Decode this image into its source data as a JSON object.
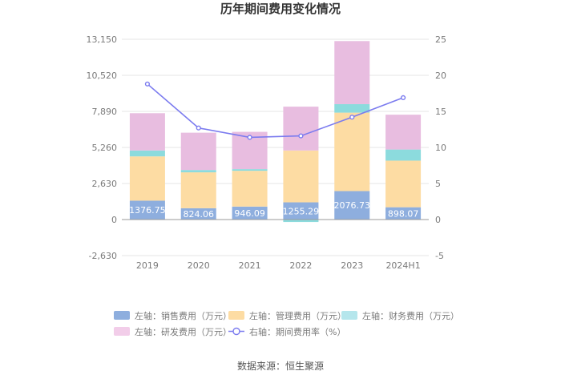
{
  "chart_data": {
    "type": "bar",
    "title": "历年期间费用变化情况",
    "source": "数据来源：恒生聚源",
    "categories": [
      "2019",
      "2020",
      "2021",
      "2022",
      "2023",
      "2024H1"
    ],
    "left_axis": {
      "ticks": [
        "13,150",
        "10,520",
        "7,890",
        "5,260",
        "2,630",
        "0",
        "-2,630"
      ],
      "tick_values": [
        13150,
        10520,
        7890,
        5260,
        2630,
        0,
        -2630
      ],
      "ylim": [
        -2630,
        13150
      ]
    },
    "right_axis": {
      "ticks": [
        "25",
        "20",
        "15",
        "10",
        "5",
        "0",
        "-5"
      ],
      "tick_values": [
        25,
        20,
        15,
        10,
        5,
        0,
        -5
      ],
      "ylim": [
        -5,
        25
      ]
    },
    "series": [
      {
        "name": "销售费用（万元）",
        "axis": "left",
        "color": "#8eaede",
        "values": [
          1376.75,
          824.06,
          946.09,
          1255.29,
          2076.73,
          898.07
        ],
        "labels": [
          "1376.75",
          "824.06",
          "946.09",
          "1255.29",
          "2076.73",
          "898.07"
        ]
      },
      {
        "name": "管理费用（万元）",
        "axis": "left",
        "color": "#fddca3",
        "values": [
          3230,
          2620,
          2610,
          3780,
          5720,
          3400
        ]
      },
      {
        "name": "财务费用（万元）",
        "axis": "left",
        "color": "#8cdbdd",
        "values": [
          430,
          170,
          120,
          -180,
          620,
          810
        ]
      },
      {
        "name": "研发费用（万元）",
        "axis": "left",
        "color": "#e8bde0",
        "values": [
          2720,
          2720,
          2720,
          3200,
          4600,
          2540
        ]
      },
      {
        "name": "期间费用率（%）",
        "axis": "right",
        "type": "line",
        "color": "#7b7bef",
        "values": [
          18.8,
          12.7,
          11.4,
          11.6,
          14.2,
          16.9
        ]
      }
    ],
    "legend": [
      {
        "prefix": "左轴：",
        "label": "销售费用（万元）",
        "color": "#8eaede",
        "kind": "box"
      },
      {
        "prefix": "左轴：",
        "label": "管理费用（万元）",
        "color": "#fddca3",
        "kind": "box"
      },
      {
        "prefix": "左轴：",
        "label": "财务费用（万元）",
        "color": "#b5e6ec",
        "kind": "box"
      },
      {
        "prefix": "左轴：",
        "label": "研发费用（万元）",
        "color": "#f2cde9",
        "kind": "box"
      },
      {
        "prefix": "右轴：",
        "label": "期间费用率（%）",
        "color": "#7b7bef",
        "kind": "line"
      }
    ]
  }
}
